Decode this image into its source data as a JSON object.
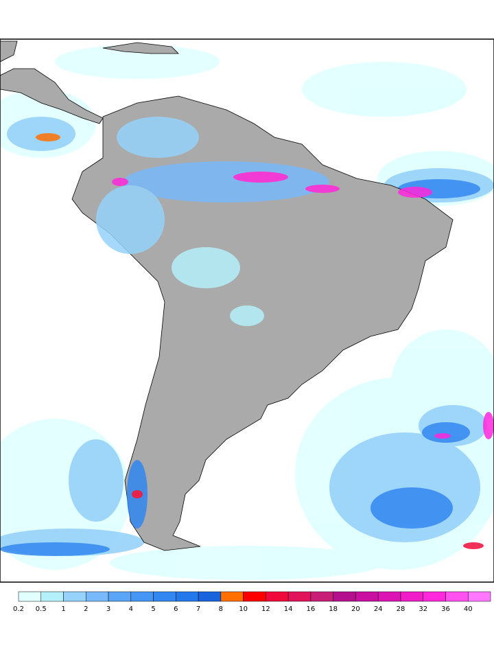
{
  "colorbar": {
    "levels": [
      0.2,
      0.5,
      1,
      2,
      3,
      4,
      5,
      6,
      7,
      8,
      10,
      12,
      14,
      16,
      18,
      20,
      24,
      28,
      32,
      36,
      40
    ],
    "colors": [
      "#e1ffff",
      "#b4f0fa",
      "#96d2fa",
      "#78b9fa",
      "#5aa5f5",
      "#4696f5",
      "#3287f0",
      "#2378eb",
      "#1964dc",
      "#ff7000",
      "#ff0000",
      "#f00a3c",
      "#e1145a",
      "#c81e78",
      "#b40f8c",
      "#c80fa0",
      "#dc14b4",
      "#f01ec8",
      "#ff28dc",
      "#ff50f0",
      "#ff78ff"
    ]
  }
}
